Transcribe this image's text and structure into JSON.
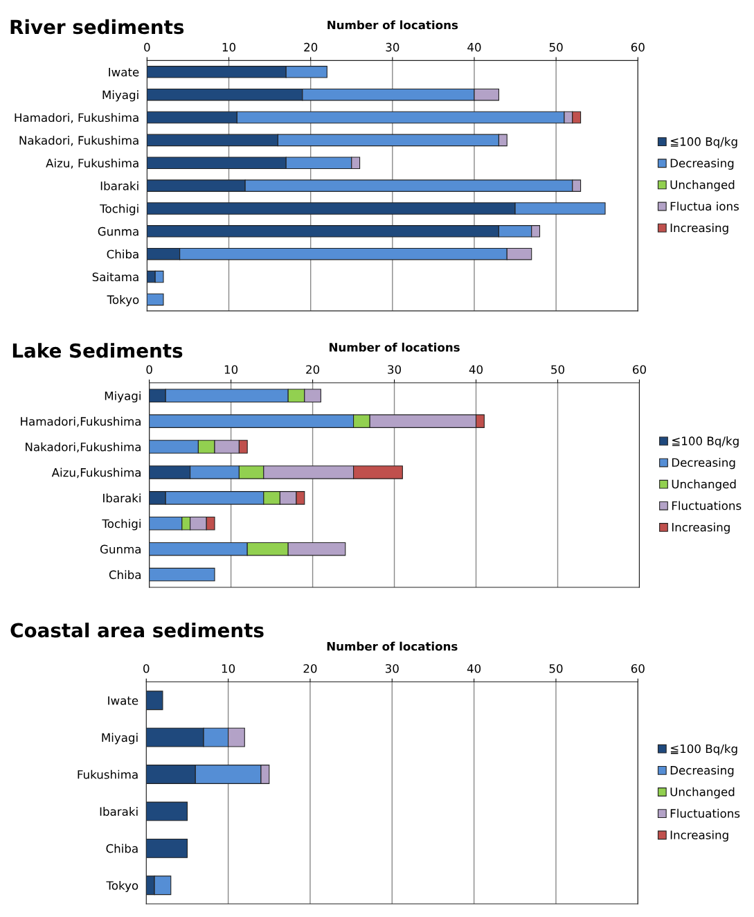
{
  "chart_data": [
    {
      "type": "bar",
      "orientation": "horizontal",
      "stacked": true,
      "title": "River sediments",
      "xlabel": "Number of locations",
      "xlim": [
        0,
        60
      ],
      "xticks": [
        0,
        10,
        20,
        30,
        40,
        50,
        60
      ],
      "grid": "x",
      "legend": "right",
      "categories": [
        "Iwate",
        "Miyagi",
        "Hamadori, Fukushima",
        "Nakadori, Fukushima",
        "Aizu, Fukushima",
        "Ibaraki",
        "Tochigi",
        "Gunma",
        "Chiba",
        "Saitama",
        "Tokyo"
      ],
      "series": [
        {
          "name": "≦100 Bq/kg",
          "color": "#1f497d",
          "values": [
            17,
            19,
            11,
            16,
            17,
            12,
            45,
            43,
            4,
            1,
            null
          ]
        },
        {
          "name": "Decreasing",
          "color": "#558ed5",
          "values": [
            5,
            21,
            40,
            27,
            8,
            40,
            11,
            4,
            40,
            1,
            2
          ]
        },
        {
          "name": "Unchanged",
          "color": "#92d050",
          "values": [
            null,
            null,
            null,
            null,
            null,
            null,
            null,
            null,
            null,
            null,
            null
          ]
        },
        {
          "name": "Fluctua ions",
          "color": "#b3a2c7",
          "values": [
            null,
            3,
            1,
            1,
            1,
            1,
            null,
            1,
            3,
            null,
            null
          ]
        },
        {
          "name": "Increasing",
          "color": "#c0504d",
          "values": [
            null,
            null,
            1,
            null,
            null,
            null,
            null,
            null,
            null,
            null,
            null
          ]
        }
      ]
    },
    {
      "type": "bar",
      "orientation": "horizontal",
      "stacked": true,
      "title": "Lake Sediments",
      "xlabel": "Number of locations",
      "xlim": [
        0,
        60
      ],
      "xticks": [
        0,
        10,
        20,
        30,
        40,
        50,
        60
      ],
      "grid": "x",
      "legend": "right",
      "categories": [
        "Miyagi",
        "Hamadori,Fukushima",
        "Nakadori,Fukushima",
        "Aizu,Fukushima",
        "Ibaraki",
        "Tochigi",
        "Gunma",
        "Chiba"
      ],
      "series": [
        {
          "name": "≦100 Bq/kg",
          "color": "#1f497d",
          "values": [
            2,
            null,
            null,
            5,
            2,
            null,
            null,
            null
          ]
        },
        {
          "name": "Decreasing",
          "color": "#558ed5",
          "values": [
            15,
            25,
            6,
            6,
            12,
            4,
            12,
            8
          ]
        },
        {
          "name": "Unchanged",
          "color": "#92d050",
          "values": [
            2,
            2,
            2,
            3,
            2,
            1,
            5,
            null
          ]
        },
        {
          "name": "Fluctuations",
          "color": "#b3a2c7",
          "values": [
            2,
            13,
            3,
            11,
            2,
            2,
            7,
            null
          ]
        },
        {
          "name": "Increasing",
          "color": "#c0504d",
          "values": [
            null,
            1,
            1,
            6,
            1,
            1,
            null,
            null
          ]
        }
      ]
    },
    {
      "type": "bar",
      "orientation": "horizontal",
      "stacked": true,
      "title": "Coastal area sediments",
      "xlabel": "Number of locations",
      "xlim": [
        0,
        60
      ],
      "xticks": [
        0,
        10,
        20,
        30,
        40,
        50,
        60
      ],
      "grid": "x",
      "legend": "right",
      "categories": [
        "Iwate",
        "Miyagi",
        "Fukushima",
        "Ibaraki",
        "Chiba",
        "Tokyo"
      ],
      "series": [
        {
          "name": "≦100 Bq/kg",
          "color": "#1f497d",
          "values": [
            2,
            7,
            6,
            5,
            5,
            1
          ]
        },
        {
          "name": "Decreasing",
          "color": "#558ed5",
          "values": [
            null,
            3,
            8,
            null,
            null,
            2
          ]
        },
        {
          "name": "Unchanged",
          "color": "#92d050",
          "values": [
            null,
            null,
            null,
            null,
            null,
            null
          ]
        },
        {
          "name": "Fluctuations",
          "color": "#b3a2c7",
          "values": [
            null,
            2,
            1,
            null,
            null,
            null
          ]
        },
        {
          "name": "Increasing",
          "color": "#c0504d",
          "values": [
            null,
            null,
            null,
            null,
            null,
            null
          ]
        }
      ]
    }
  ]
}
